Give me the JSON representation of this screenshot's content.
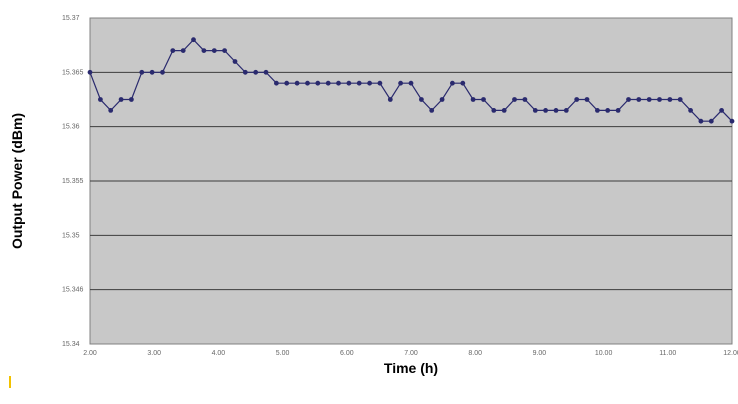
{
  "chart_data": {
    "type": "line",
    "xlabel": "Time (h)",
    "ylabel": "Output Power (dBm)",
    "x_tick_labels": [
      "2.00",
      "3.00",
      "4.00",
      "5.00",
      "6.00",
      "7.00",
      "8.00",
      "9.00",
      "10.00",
      "11.00",
      "12.00"
    ],
    "y_tick_labels": [
      "15.34",
      "15.346",
      "15.35",
      "15.355",
      "15.36",
      "15.365",
      "15.37"
    ],
    "xlim": [
      2,
      12
    ],
    "grid": true,
    "legend": "none",
    "colors": {
      "plot_bg": "#c8c8c8",
      "line": "#2a2a6e",
      "grid": "#3c3c3c",
      "frame": "#808080"
    },
    "series": [
      {
        "values": [
          5.0,
          4.5,
          4.3,
          4.5,
          4.5,
          5.0,
          5.0,
          5.0,
          5.4,
          5.4,
          5.6,
          5.4,
          5.4,
          5.4,
          5.2,
          5.0,
          5.0,
          5.0,
          4.8,
          4.8,
          4.8,
          4.8,
          4.8,
          4.8,
          4.8,
          4.8,
          4.8,
          4.8,
          4.8,
          4.5,
          4.8,
          4.8,
          4.5,
          4.3,
          4.5,
          4.8,
          4.8,
          4.5,
          4.5,
          4.3,
          4.3,
          4.5,
          4.5,
          4.3,
          4.3,
          4.3,
          4.3,
          4.5,
          4.5,
          4.3,
          4.3,
          4.3,
          4.5,
          4.5,
          4.5,
          4.5,
          4.5,
          4.5,
          4.3,
          4.1,
          4.1,
          4.3,
          4.1
        ]
      }
    ]
  }
}
